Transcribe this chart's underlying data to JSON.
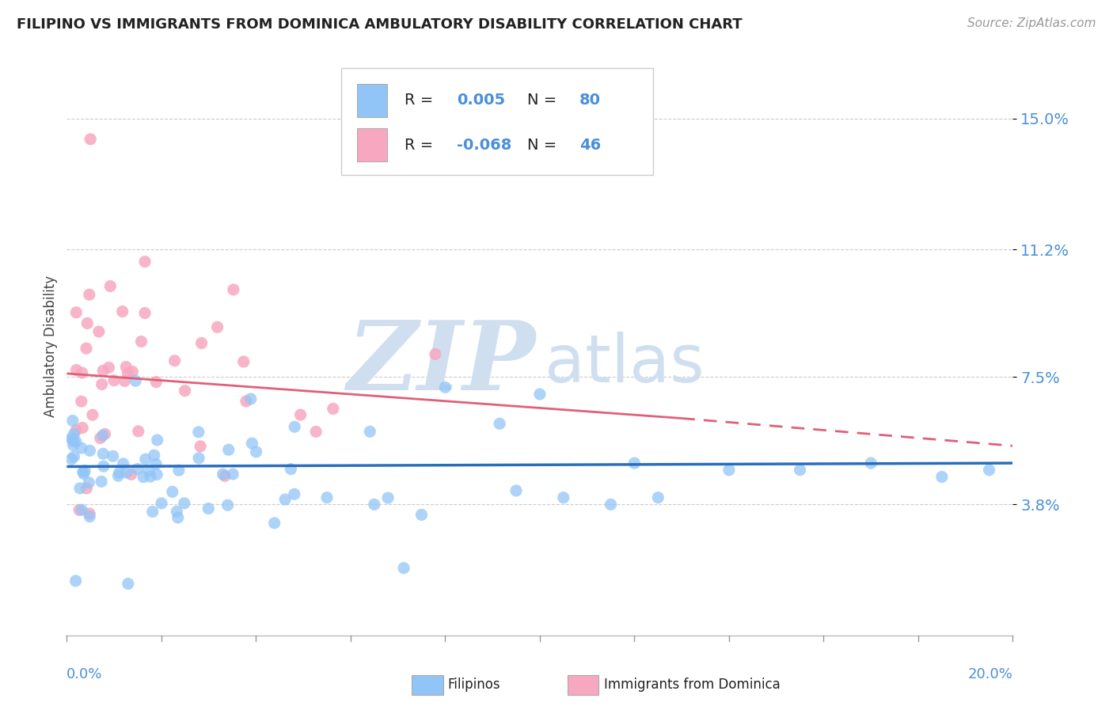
{
  "title": "FILIPINO VS IMMIGRANTS FROM DOMINICA AMBULATORY DISABILITY CORRELATION CHART",
  "source": "Source: ZipAtlas.com",
  "ylabel": "Ambulatory Disability",
  "y_ticks": [
    0.038,
    0.075,
    0.112,
    0.15
  ],
  "y_tick_labels": [
    "3.8%",
    "7.5%",
    "11.2%",
    "15.0%"
  ],
  "xlim": [
    0.0,
    0.2
  ],
  "ylim": [
    0.0,
    0.168
  ],
  "filipinos_R": 0.005,
  "filipinos_N": 80,
  "dominica_R": -0.068,
  "dominica_N": 46,
  "filipinos_color": "#92c5f7",
  "dominica_color": "#f7a8c0",
  "trend_blue_color": "#2a6ebb",
  "trend_pink_color": "#e0607a",
  "watermark_zip": "ZIP",
  "watermark_atlas": "atlas",
  "watermark_color": "#d0dff0",
  "background_color": "#ffffff",
  "legend_filipinos": "Filipinos",
  "legend_dominica": "Immigrants from Dominica",
  "grid_color": "#cccccc",
  "tick_label_color": "#4a90d9",
  "title_color": "#222222",
  "ylabel_color": "#444444",
  "legend_text_color": "#222222"
}
